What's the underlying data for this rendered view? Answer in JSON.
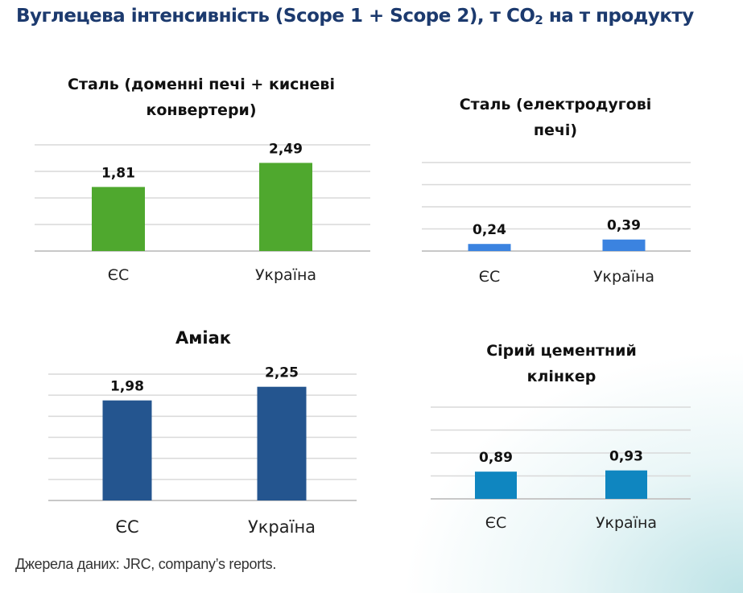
{
  "title_main": "Вуглецева інтенсивність (Scope 1 + Scope 2), т CO",
  "title_subscript": "2",
  "title_tail": " на т продукту",
  "footer": "Джерела даних: JRC, company’s reports.",
  "chart_data": [
    {
      "type": "bar",
      "title_lines": [
        "Сталь (доменні печі + кисневі",
        "конвертери)"
      ],
      "categories": [
        "ЄС",
        "Україна"
      ],
      "values": [
        1.81,
        2.49
      ],
      "value_labels": [
        "1,81",
        "2,49"
      ],
      "ylim": [
        0,
        3
      ],
      "gridlines": 4,
      "color": "#4fa82e"
    },
    {
      "type": "bar",
      "title_lines": [
        "Сталь (електродугові",
        "печі)"
      ],
      "categories": [
        "ЄС",
        "Україна"
      ],
      "values": [
        0.24,
        0.39
      ],
      "value_labels": [
        "0,24",
        "0,39"
      ],
      "ylim": [
        0,
        3
      ],
      "gridlines": 4,
      "color": "#3b83e0"
    },
    {
      "type": "bar",
      "title_lines": [
        "Аміак"
      ],
      "categories": [
        "ЄС",
        "Україна"
      ],
      "values": [
        1.98,
        2.25
      ],
      "value_labels": [
        "1,98",
        "2,25"
      ],
      "ylim": [
        0,
        2.5
      ],
      "gridlines": 6,
      "color": "#24558f"
    },
    {
      "type": "bar",
      "title_lines": [
        "Сірий цементний",
        "клінкер"
      ],
      "categories": [
        "ЄС",
        "Україна"
      ],
      "values": [
        0.89,
        0.93
      ],
      "value_labels": [
        "0,89",
        "0,93"
      ],
      "ylim": [
        0,
        3
      ],
      "gridlines": 4,
      "color": "#0f86c0"
    }
  ]
}
